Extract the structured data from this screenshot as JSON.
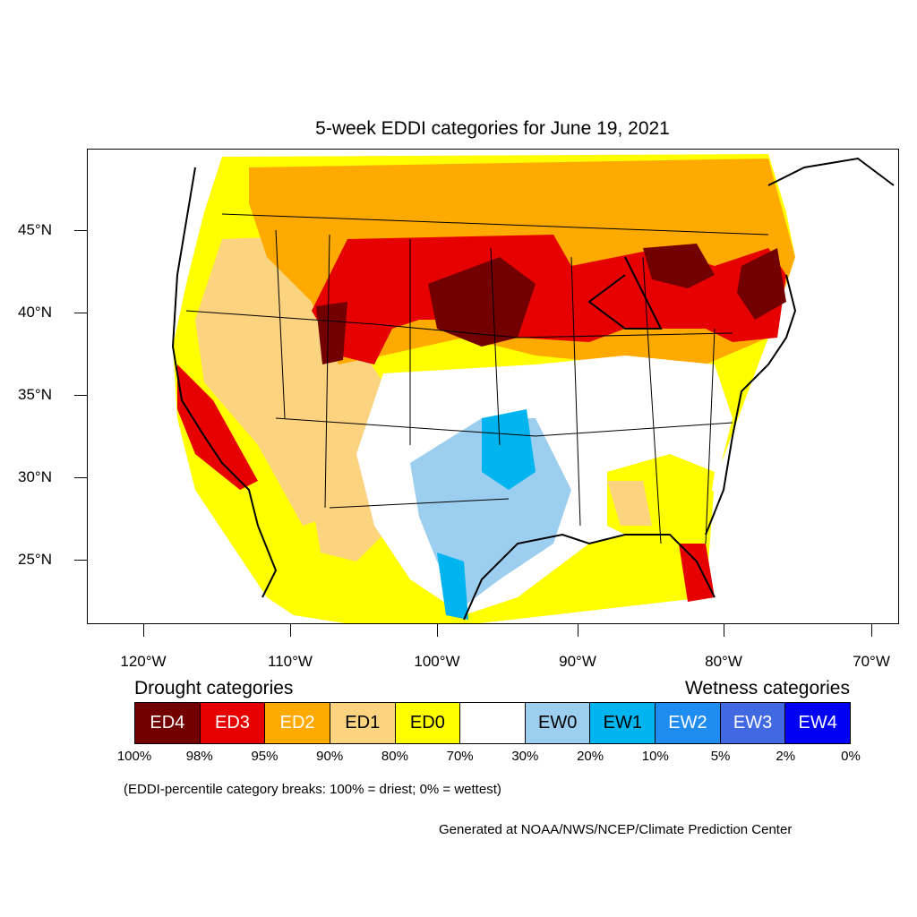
{
  "title": "5-week EDDI categories for June 19, 2021",
  "lat_labels": [
    "45°N",
    "40°N",
    "35°N",
    "30°N",
    "25°N"
  ],
  "lon_labels": [
    "120°W",
    "110°W",
    "100°W",
    "90°W",
    "80°W",
    "70°W"
  ],
  "legend": {
    "drought_heading": "Drought categories",
    "wetness_heading": "Wetness categories",
    "categories": [
      {
        "label": "ED4",
        "color": "#730000",
        "text_color": "#ffffff"
      },
      {
        "label": "ED3",
        "color": "#e60000",
        "text_color": "#ffffff"
      },
      {
        "label": "ED2",
        "color": "#ffaa00",
        "text_color": "#ffffff"
      },
      {
        "label": "ED1",
        "color": "#fcd37f",
        "text_color": "#000000"
      },
      {
        "label": "ED0",
        "color": "#ffff00",
        "text_color": "#000000"
      },
      {
        "label": "",
        "color": "#ffffff",
        "text_color": "#000000"
      },
      {
        "label": "EW0",
        "color": "#9ccef0",
        "text_color": "#000000"
      },
      {
        "label": "EW1",
        "color": "#00b4f0",
        "text_color": "#000000"
      },
      {
        "label": "EW2",
        "color": "#1e8cf0",
        "text_color": "#ffffff"
      },
      {
        "label": "EW3",
        "color": "#4169e1",
        "text_color": "#ffffff"
      },
      {
        "label": "EW4",
        "color": "#0000f5",
        "text_color": "#ffffff"
      }
    ],
    "breaks": [
      "100%",
      "98%",
      "95%",
      "90%",
      "80%",
      "70%",
      "30%",
      "20%",
      "10%",
      "5%",
      "2%",
      "0%"
    ]
  },
  "note": "(EDDI-percentile category breaks: 100% = driest; 0% = wettest)",
  "credit": "Generated at NOAA/NWS/NCEP/Climate Prediction Center"
}
